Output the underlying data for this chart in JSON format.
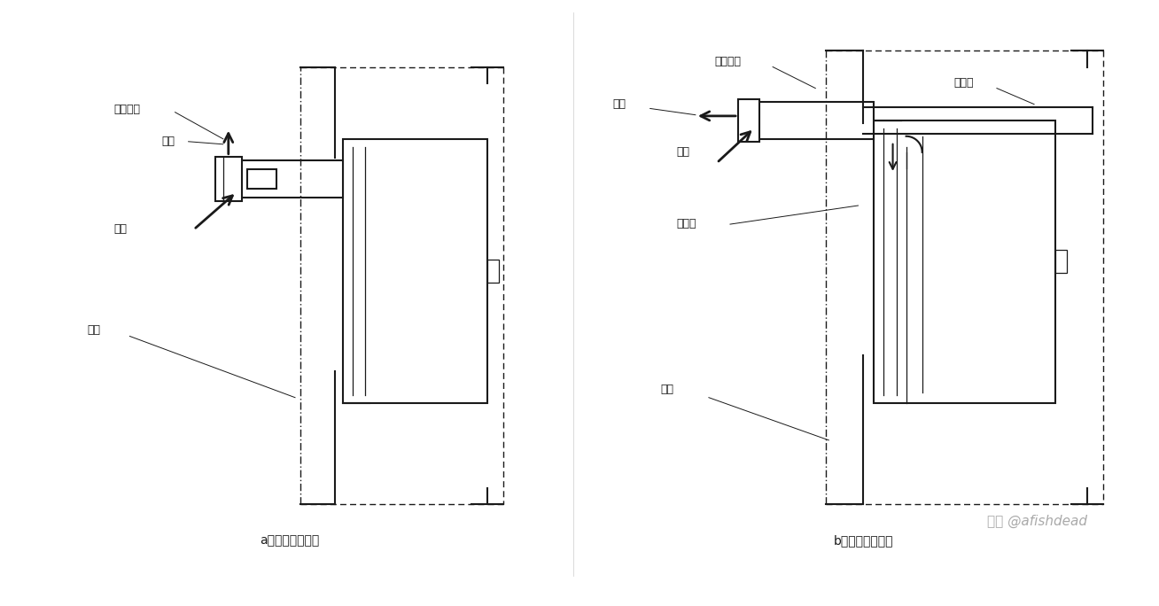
{
  "title_a": "a）自然给排气式",
  "title_b": "b）强制给排气式",
  "label_a_paiqitong": "给排气筒",
  "label_a_yanqi": "烟气",
  "label_a_kongqi": "空气",
  "label_a_waiqiang": "外墙",
  "label_b_paiqitong": "给排气筒",
  "label_b_yanqi": "烟气",
  "label_b_kongqi": "空气",
  "label_b_waiqiang": "外墙",
  "label_b_geiqi": "给气管",
  "label_b_paiqi": "排气管",
  "watermark": "知乎 @afishdead",
  "bg_color": "#ffffff",
  "line_color": "#1a1a1a",
  "fontsize_label": 9,
  "fontsize_caption": 10,
  "fontsize_watermark": 11
}
